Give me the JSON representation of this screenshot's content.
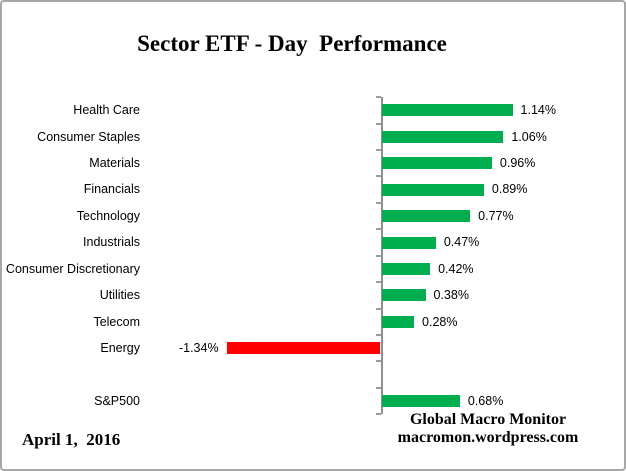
{
  "title": "Sector ETF - Day  Performance",
  "footer": {
    "date": "April 1,  2016",
    "credit_line1": "Global Macro Monitor",
    "credit_line2": "macromon.wordpress.com"
  },
  "colors": {
    "positive_bar": "#00AE50",
    "negative_bar": "#FF0000",
    "axis": "#8F8F8F"
  },
  "chart_data": {
    "type": "bar",
    "orientation": "horizontal",
    "title": "Sector ETF - Day  Performance",
    "xlabel": "",
    "ylabel": "",
    "grid": false,
    "legend": false,
    "axis_labels_position": "low",
    "categories": [
      "Health Care",
      "Consumer Staples",
      "Materials",
      "Financials",
      "Technology",
      "Industrials",
      "Consumer Discretionary",
      "Utilities",
      "Telecom",
      "Energy",
      "",
      "S&P500"
    ],
    "values": [
      1.14,
      1.06,
      0.96,
      0.89,
      0.77,
      0.47,
      0.42,
      0.38,
      0.28,
      -1.34,
      null,
      0.68
    ],
    "value_labels": [
      "1.14%",
      "1.06%",
      "0.96%",
      "0.89%",
      "0.77%",
      "0.47%",
      "0.42%",
      "0.38%",
      "0.28%",
      "-1.34%",
      "",
      "0.68%"
    ]
  }
}
